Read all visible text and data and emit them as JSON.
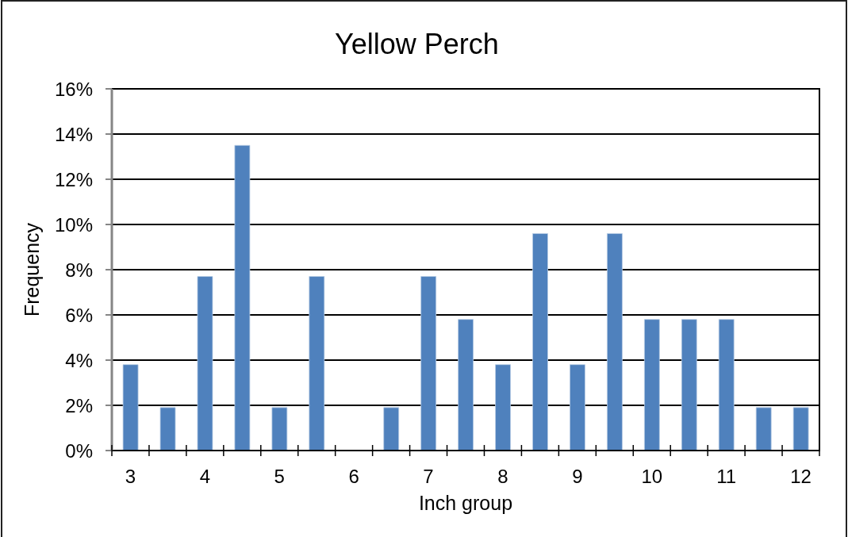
{
  "chart_data": {
    "type": "bar",
    "title": "Yellow Perch",
    "xlabel": "Inch group",
    "ylabel": "Frequency",
    "categories": [
      "3",
      null,
      "4",
      null,
      "5",
      null,
      "6",
      null,
      "7",
      null,
      "8",
      null,
      "9",
      null,
      "10",
      null,
      "11",
      null,
      "12"
    ],
    "values": [
      3.8,
      1.9,
      7.7,
      13.5,
      1.9,
      7.7,
      0,
      1.9,
      7.7,
      5.8,
      3.8,
      9.6,
      3.8,
      9.6,
      5.8,
      5.8,
      5.8,
      1.9,
      1.9
    ],
    "color": "#4f81bd",
    "ylim": [
      0,
      16
    ],
    "yticks": [
      {
        "value": 0,
        "label": "0%"
      },
      {
        "value": 2,
        "label": "2%"
      },
      {
        "value": 4,
        "label": "4%"
      },
      {
        "value": 6,
        "label": "6%"
      },
      {
        "value": 8,
        "label": "8%"
      },
      {
        "value": 10,
        "label": "10%"
      },
      {
        "value": 12,
        "label": "12%"
      },
      {
        "value": 14,
        "label": "14%"
      },
      {
        "value": 16,
        "label": "16%"
      }
    ],
    "grid": "y"
  }
}
